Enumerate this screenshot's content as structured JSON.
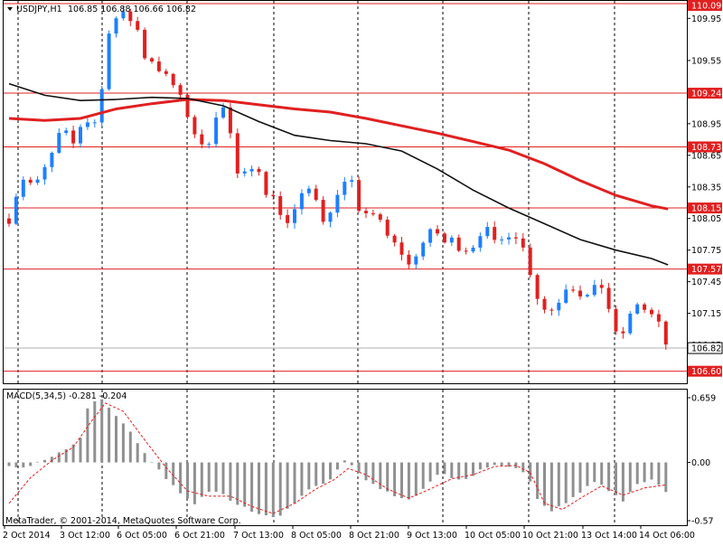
{
  "header": {
    "title": "USDJPY,H1",
    "ohlc": "106.85 106.88 106.66 106.82"
  },
  "colors": {
    "bull": "#1e7fff",
    "bear": "#e02020",
    "level_line": "#e02020",
    "ma_fast": "#e02020",
    "ma_slow": "#111111",
    "grid": "#000000",
    "histogram": "#909090",
    "signal": "#e02020",
    "label_bg": "#e02020",
    "current_bg": "#ffffff"
  },
  "price_axis": {
    "ticks": [
      "109.95",
      "109.55",
      "108.95",
      "108.65",
      "108.35",
      "108.05",
      "107.75",
      "107.45",
      "107.15",
      "106.85"
    ]
  },
  "level_labels": [
    "110.09",
    "109.24",
    "108.73",
    "108.15",
    "107.57",
    "106.60"
  ],
  "current_price_label": "106.82",
  "macd": {
    "title": "MACD(5,34,5) -0.281 -0.204",
    "axis_ticks": [
      "0.659",
      "0.00",
      "-0.57"
    ]
  },
  "time_axis": {
    "labels": [
      "2 Oct 2014",
      "3 Oct 12:00",
      "6 Oct 05:00",
      "6 Oct 21:00",
      "7 Oct 13:00",
      "8 Oct 05:00",
      "8 Oct 21:00",
      "9 Oct 13:00",
      "10 Oct 05:00",
      "10 Oct 21:00",
      "13 Oct 14:00",
      "14 Oct 06:00"
    ]
  },
  "watermark": "MetaTrader, © 2001-2014, MetaQuotes Software Corp.",
  "chart_data": {
    "type": "candlestick",
    "symbol": "USDJPY",
    "timeframe": "H1",
    "ylim": [
      106.52,
      110.09
    ],
    "horizontal_levels": [
      110.09,
      109.24,
      108.73,
      108.15,
      107.57,
      106.6
    ],
    "current_price": 106.82,
    "ohlc_path": [
      {
        "x": 0.0,
        "p": 108.05
      },
      {
        "x": 1.7,
        "p": 108.45
      },
      {
        "x": 3.7,
        "p": 108.35
      },
      {
        "x": 5.8,
        "p": 108.62
      },
      {
        "x": 7.5,
        "p": 108.92
      },
      {
        "x": 8.8,
        "p": 108.72
      },
      {
        "x": 10.5,
        "p": 109.02
      },
      {
        "x": 11.6,
        "p": 108.93
      },
      {
        "x": 12.3,
        "p": 109.0
      },
      {
        "x": 13.2,
        "p": 109.35
      },
      {
        "x": 14.0,
        "p": 109.85
      },
      {
        "x": 15.0,
        "p": 109.95
      },
      {
        "x": 16.2,
        "p": 109.98
      },
      {
        "x": 17.8,
        "p": 109.9
      },
      {
        "x": 18.8,
        "p": 109.6
      },
      {
        "x": 20.2,
        "p": 109.55
      },
      {
        "x": 21.8,
        "p": 109.4
      },
      {
        "x": 23.2,
        "p": 109.3
      },
      {
        "x": 24.4,
        "p": 109.12
      },
      {
        "x": 25.5,
        "p": 108.97
      },
      {
        "x": 26.8,
        "p": 108.7
      },
      {
        "x": 28.0,
        "p": 108.8
      },
      {
        "x": 29.0,
        "p": 109.05
      },
      {
        "x": 30.2,
        "p": 109.1
      },
      {
        "x": 31.0,
        "p": 108.85
      },
      {
        "x": 31.8,
        "p": 108.45
      },
      {
        "x": 32.7,
        "p": 108.4
      },
      {
        "x": 33.5,
        "p": 108.55
      },
      {
        "x": 34.8,
        "p": 108.6
      },
      {
        "x": 36.0,
        "p": 108.25
      },
      {
        "x": 37.3,
        "p": 108.3
      },
      {
        "x": 38.5,
        "p": 107.95
      },
      {
        "x": 39.8,
        "p": 108.1
      },
      {
        "x": 41.0,
        "p": 108.25
      },
      {
        "x": 42.3,
        "p": 108.35
      },
      {
        "x": 43.4,
        "p": 108.2
      },
      {
        "x": 44.5,
        "p": 107.95
      },
      {
        "x": 45.8,
        "p": 108.3
      },
      {
        "x": 47.0,
        "p": 108.38
      },
      {
        "x": 47.7,
        "p": 108.62
      },
      {
        "x": 48.4,
        "p": 108.05
      },
      {
        "x": 49.5,
        "p": 108.1
      },
      {
        "x": 50.5,
        "p": 108.15
      },
      {
        "x": 52.0,
        "p": 108.0
      },
      {
        "x": 53.2,
        "p": 107.85
      },
      {
        "x": 54.8,
        "p": 107.75
      },
      {
        "x": 56.0,
        "p": 107.6
      },
      {
        "x": 57.0,
        "p": 107.72
      },
      {
        "x": 58.3,
        "p": 107.85
      },
      {
        "x": 59.6,
        "p": 107.95
      },
      {
        "x": 61.0,
        "p": 107.82
      },
      {
        "x": 62.3,
        "p": 107.85
      },
      {
        "x": 63.5,
        "p": 107.75
      },
      {
        "x": 65.0,
        "p": 107.8
      },
      {
        "x": 66.2,
        "p": 107.95
      },
      {
        "x": 67.3,
        "p": 107.92
      },
      {
        "x": 68.3,
        "p": 107.75
      },
      {
        "x": 69.3,
        "p": 107.88
      },
      {
        "x": 70.6,
        "p": 107.95
      },
      {
        "x": 71.8,
        "p": 107.8
      },
      {
        "x": 72.8,
        "p": 107.62
      },
      {
        "x": 73.2,
        "p": 107.48
      },
      {
        "x": 74.3,
        "p": 107.25
      },
      {
        "x": 75.5,
        "p": 107.15
      },
      {
        "x": 76.8,
        "p": 107.25
      },
      {
        "x": 78.3,
        "p": 107.45
      },
      {
        "x": 79.8,
        "p": 107.35
      },
      {
        "x": 81.3,
        "p": 107.3
      },
      {
        "x": 82.8,
        "p": 107.45
      },
      {
        "x": 83.8,
        "p": 107.25
      },
      {
        "x": 84.6,
        "p": 107.05
      },
      {
        "x": 85.3,
        "p": 106.85
      },
      {
        "x": 86.5,
        "p": 107.05
      },
      {
        "x": 88.0,
        "p": 107.25
      },
      {
        "x": 89.5,
        "p": 107.15
      },
      {
        "x": 90.5,
        "p": 107.1
      },
      {
        "x": 91.4,
        "p": 106.98
      },
      {
        "x": 92.3,
        "p": 106.8
      }
    ],
    "moving_averages": [
      {
        "color": "ma_fast",
        "points": [
          {
            "x": 0,
            "p": 109.0
          },
          {
            "x": 5,
            "p": 108.98
          },
          {
            "x": 10,
            "p": 109.0
          },
          {
            "x": 15,
            "p": 109.09
          },
          {
            "x": 20,
            "p": 109.14
          },
          {
            "x": 25,
            "p": 109.18
          },
          {
            "x": 30,
            "p": 109.17
          },
          {
            "x": 35,
            "p": 109.13
          },
          {
            "x": 40,
            "p": 109.09
          },
          {
            "x": 45,
            "p": 109.06
          },
          {
            "x": 50,
            "p": 109.0
          },
          {
            "x": 55,
            "p": 108.93
          },
          {
            "x": 60,
            "p": 108.86
          },
          {
            "x": 65,
            "p": 108.78
          },
          {
            "x": 70,
            "p": 108.7
          },
          {
            "x": 75,
            "p": 108.57
          },
          {
            "x": 80,
            "p": 108.41
          },
          {
            "x": 85,
            "p": 108.27
          },
          {
            "x": 90,
            "p": 108.17
          },
          {
            "x": 92.3,
            "p": 108.14
          }
        ]
      },
      {
        "color": "ma_slow",
        "points": [
          {
            "x": 0,
            "p": 109.33
          },
          {
            "x": 5,
            "p": 109.22
          },
          {
            "x": 10,
            "p": 109.17
          },
          {
            "x": 15,
            "p": 109.18
          },
          {
            "x": 20,
            "p": 109.2
          },
          {
            "x": 25,
            "p": 109.19
          },
          {
            "x": 30,
            "p": 109.12
          },
          {
            "x": 35,
            "p": 108.97
          },
          {
            "x": 40,
            "p": 108.84
          },
          {
            "x": 45,
            "p": 108.79
          },
          {
            "x": 50,
            "p": 108.76
          },
          {
            "x": 55,
            "p": 108.69
          },
          {
            "x": 60,
            "p": 108.52
          },
          {
            "x": 65,
            "p": 108.32
          },
          {
            "x": 70,
            "p": 108.15
          },
          {
            "x": 75,
            "p": 108.0
          },
          {
            "x": 80,
            "p": 107.85
          },
          {
            "x": 85,
            "p": 107.75
          },
          {
            "x": 90,
            "p": 107.67
          },
          {
            "x": 92.3,
            "p": 107.61
          }
        ]
      }
    ],
    "macd": {
      "params": [
        5,
        34,
        5
      ],
      "main": -0.281,
      "signal": -0.204,
      "ylim": [
        -0.57,
        0.659
      ],
      "histogram_path": [
        {
          "x": 0,
          "v": -0.05
        },
        {
          "x": 3,
          "v": -0.03
        },
        {
          "x": 5.5,
          "v": 0.03
        },
        {
          "x": 8,
          "v": 0.12
        },
        {
          "x": 10,
          "v": 0.25
        },
        {
          "x": 11.3,
          "v": 0.6
        },
        {
          "x": 12.8,
          "v": 0.62
        },
        {
          "x": 15,
          "v": 0.45
        },
        {
          "x": 17,
          "v": 0.3
        },
        {
          "x": 19,
          "v": 0.08
        },
        {
          "x": 21.5,
          "v": -0.12
        },
        {
          "x": 24,
          "v": -0.3
        },
        {
          "x": 26,
          "v": -0.4
        },
        {
          "x": 28,
          "v": -0.28
        },
        {
          "x": 30,
          "v": -0.32
        },
        {
          "x": 32,
          "v": -0.42
        },
        {
          "x": 34,
          "v": -0.47
        },
        {
          "x": 36,
          "v": -0.53
        },
        {
          "x": 38,
          "v": -0.51
        },
        {
          "x": 40.5,
          "v": -0.36
        },
        {
          "x": 43,
          "v": -0.22
        },
        {
          "x": 45,
          "v": -0.18
        },
        {
          "x": 47.2,
          "v": 0.05
        },
        {
          "x": 49,
          "v": -0.1
        },
        {
          "x": 51.5,
          "v": -0.25
        },
        {
          "x": 54,
          "v": -0.32
        },
        {
          "x": 56.5,
          "v": -0.38
        },
        {
          "x": 58.5,
          "v": -0.22
        },
        {
          "x": 60.5,
          "v": -0.1
        },
        {
          "x": 62.5,
          "v": -0.18
        },
        {
          "x": 64.5,
          "v": -0.14
        },
        {
          "x": 66.5,
          "v": -0.05
        },
        {
          "x": 68.5,
          "v": -0.02
        },
        {
          "x": 70.5,
          "v": -0.04
        },
        {
          "x": 72.5,
          "v": -0.12
        },
        {
          "x": 74,
          "v": -0.35
        },
        {
          "x": 75.5,
          "v": -0.48
        },
        {
          "x": 77.5,
          "v": -0.42
        },
        {
          "x": 80,
          "v": -0.3
        },
        {
          "x": 82,
          "v": -0.18
        },
        {
          "x": 84,
          "v": -0.28
        },
        {
          "x": 86,
          "v": -0.38
        },
        {
          "x": 88,
          "v": -0.22
        },
        {
          "x": 90,
          "v": -0.18
        },
        {
          "x": 92,
          "v": -0.28
        }
      ],
      "signal_path": [
        {
          "x": 0,
          "v": -0.4
        },
        {
          "x": 3,
          "v": -0.15
        },
        {
          "x": 6,
          "v": 0.02
        },
        {
          "x": 9,
          "v": 0.15
        },
        {
          "x": 11.5,
          "v": 0.4
        },
        {
          "x": 13.5,
          "v": 0.58
        },
        {
          "x": 16,
          "v": 0.5
        },
        {
          "x": 19,
          "v": 0.22
        },
        {
          "x": 22,
          "v": -0.05
        },
        {
          "x": 25,
          "v": -0.28
        },
        {
          "x": 28,
          "v": -0.33
        },
        {
          "x": 31,
          "v": -0.33
        },
        {
          "x": 34,
          "v": -0.43
        },
        {
          "x": 37,
          "v": -0.5
        },
        {
          "x": 40,
          "v": -0.4
        },
        {
          "x": 43,
          "v": -0.26
        },
        {
          "x": 45.5,
          "v": -0.17
        },
        {
          "x": 47.5,
          "v": -0.06
        },
        {
          "x": 50,
          "v": -0.12
        },
        {
          "x": 53,
          "v": -0.26
        },
        {
          "x": 56,
          "v": -0.35
        },
        {
          "x": 59,
          "v": -0.26
        },
        {
          "x": 62,
          "v": -0.16
        },
        {
          "x": 65,
          "v": -0.12
        },
        {
          "x": 68,
          "v": -0.04
        },
        {
          "x": 71,
          "v": -0.03
        },
        {
          "x": 73,
          "v": -0.1
        },
        {
          "x": 75,
          "v": -0.4
        },
        {
          "x": 77.5,
          "v": -0.46
        },
        {
          "x": 80.5,
          "v": -0.33
        },
        {
          "x": 83,
          "v": -0.23
        },
        {
          "x": 86,
          "v": -0.32
        },
        {
          "x": 89,
          "v": -0.25
        },
        {
          "x": 92,
          "v": -0.22
        }
      ]
    }
  }
}
